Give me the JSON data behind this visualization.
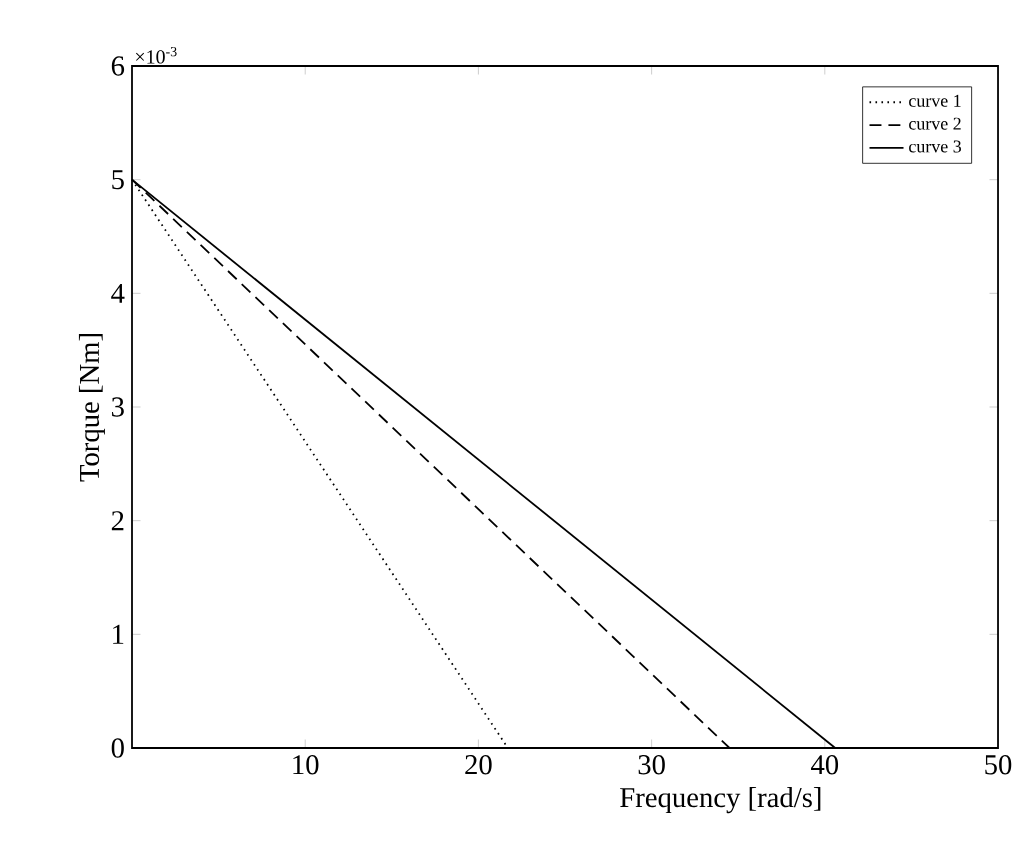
{
  "chart_data": {
    "type": "line",
    "xlabel": "Frequency  [rad/s]",
    "ylabel": "Torque [Nm]",
    "xlim": [
      0,
      50
    ],
    "xticks": [
      10,
      20,
      30,
      40,
      50
    ],
    "ylim": [
      0,
      6
    ],
    "yticks": [
      0,
      1,
      2,
      3,
      4,
      5,
      6
    ],
    "annotations": [
      "×10$^{-3}$"
    ],
    "legend": "top right",
    "grid": false,
    "series": [
      {
        "name": "curve 1",
        "color": "#000000",
        "line_style": "dotted",
        "x": [
          0,
          21.7
        ],
        "values": [
          5,
          0
        ]
      },
      {
        "name": "curve 2",
        "color": "#000000",
        "line_style": "dashed",
        "x": [
          0,
          34.5
        ],
        "values": [
          5,
          0
        ]
      },
      {
        "name": "curve 3",
        "color": "#000000",
        "line_style": "solid",
        "x": [
          0,
          40.6
        ],
        "values": [
          5,
          0
        ]
      }
    ]
  }
}
